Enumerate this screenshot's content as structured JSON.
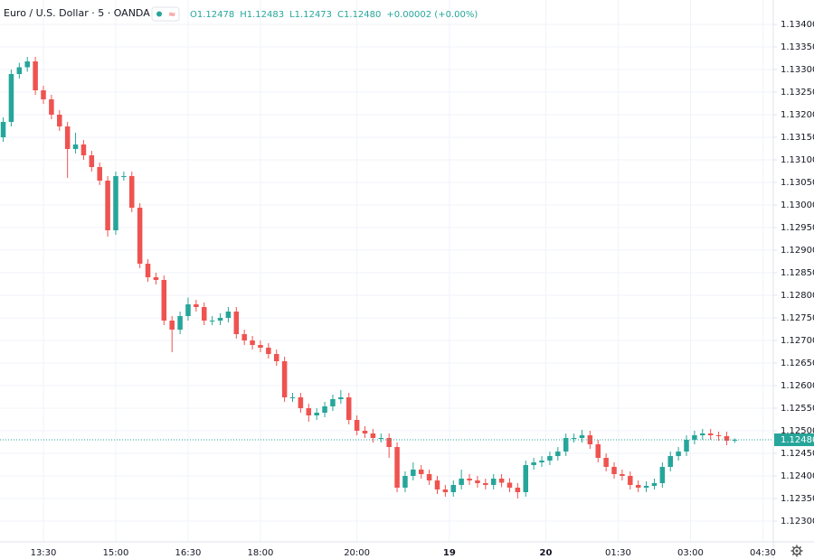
{
  "chart_data": {
    "type": "candlestick",
    "title": "Euro / U.S. Dollar · 5 · OANDA",
    "ohlc_text": [
      "O1.12478",
      "H1.12483",
      "L1.12473",
      "C1.12480",
      "+0.00002 (+0.00%)"
    ],
    "up_color": "#26a69a",
    "down_color": "#ef5350",
    "grid": true,
    "last_price": {
      "value": 1.1248,
      "label": "1.12480"
    },
    "xlim": [
      -0.4,
      95.8
    ],
    "xticks": [
      {
        "value": 5,
        "label": "13:30"
      },
      {
        "value": 14,
        "label": "15:00"
      },
      {
        "value": 23,
        "label": "16:30"
      },
      {
        "value": 32,
        "label": "18:00"
      },
      {
        "value": 44,
        "label": "20:00"
      },
      {
        "value": 55.5,
        "label": "19"
      },
      {
        "value": 67.5,
        "label": "20"
      },
      {
        "value": 76.5,
        "label": "01:30"
      },
      {
        "value": 85.5,
        "label": "03:00"
      },
      {
        "value": 94.5,
        "label": "04:30"
      }
    ],
    "ylim": [
      1.12254,
      1.13454
    ],
    "yticks": [
      {
        "value": 1.123,
        "label": "1.12300"
      },
      {
        "value": 1.1235,
        "label": "1.12350"
      },
      {
        "value": 1.124,
        "label": "1.12400"
      },
      {
        "value": 1.1245,
        "label": "1.12450"
      },
      {
        "value": 1.125,
        "label": "1.12500"
      },
      {
        "value": 1.1255,
        "label": "1.12550"
      },
      {
        "value": 1.126,
        "label": "1.12600"
      },
      {
        "value": 1.1265,
        "label": "1.12650"
      },
      {
        "value": 1.127,
        "label": "1.12700"
      },
      {
        "value": 1.1275,
        "label": "1.12750"
      },
      {
        "value": 1.128,
        "label": "1.12800"
      },
      {
        "value": 1.1285,
        "label": "1.12850"
      },
      {
        "value": 1.129,
        "label": "1.12900"
      },
      {
        "value": 1.1295,
        "label": "1.12950"
      },
      {
        "value": 1.13,
        "label": "1.13000"
      },
      {
        "value": 1.1305,
        "label": "1.13050"
      },
      {
        "value": 1.131,
        "label": "1.13100"
      },
      {
        "value": 1.1315,
        "label": "1.13150"
      },
      {
        "value": 1.132,
        "label": "1.13200"
      },
      {
        "value": 1.1325,
        "label": "1.13250"
      },
      {
        "value": 1.133,
        "label": "1.13300"
      },
      {
        "value": 1.1335,
        "label": "1.13350"
      },
      {
        "value": 1.134,
        "label": "1.13400"
      }
    ],
    "open": [
      1.1315,
      1.13184,
      1.1329,
      1.13305,
      1.13318,
      1.13254,
      1.13234,
      1.132,
      1.13174,
      1.13124,
      1.13134,
      1.1311,
      1.13084,
      1.13054,
      1.12944,
      1.13064,
      1.13064,
      1.12994,
      1.1287,
      1.1284,
      1.12834,
      1.12744,
      1.12724,
      1.12754,
      1.1278,
      1.12774,
      1.12744,
      1.12744,
      1.1275,
      1.12764,
      1.12714,
      1.127,
      1.1269,
      1.12684,
      1.1267,
      1.12654,
      1.12574,
      1.12574,
      1.1255,
      1.12534,
      1.1254,
      1.12554,
      1.1257,
      1.12574,
      1.12524,
      1.125,
      1.12494,
      1.12484,
      1.12484,
      1.12464,
      1.12374,
      1.124,
      1.12414,
      1.12404,
      1.1239,
      1.1237,
      1.12364,
      1.1238,
      1.12394,
      1.1239,
      1.12384,
      1.1238,
      1.12394,
      1.12385,
      1.12374,
      1.12364,
      1.12424,
      1.1243,
      1.12434,
      1.12444,
      1.12454,
      1.12484,
      1.12484,
      1.1249,
      1.1247,
      1.1244,
      1.1242,
      1.12404,
      1.124,
      1.1238,
      1.12374,
      1.12378,
      1.12384,
      1.1242,
      1.12444,
      1.12454,
      1.1248,
      1.1249,
      1.12494,
      1.1249,
      1.12488,
      1.12478
    ],
    "high": [
      1.13194,
      1.133,
      1.13315,
      1.13328,
      1.13328,
      1.13264,
      1.13244,
      1.1321,
      1.13184,
      1.1316,
      1.13144,
      1.1312,
      1.13094,
      1.13064,
      1.13074,
      1.13074,
      1.13074,
      1.13004,
      1.1288,
      1.1285,
      1.12844,
      1.12754,
      1.12764,
      1.12795,
      1.1279,
      1.12784,
      1.12754,
      1.1276,
      1.12774,
      1.12774,
      1.12724,
      1.1271,
      1.127,
      1.12694,
      1.1268,
      1.12664,
      1.12584,
      1.12584,
      1.1256,
      1.1255,
      1.12564,
      1.1258,
      1.1259,
      1.12584,
      1.12534,
      1.1251,
      1.12504,
      1.12494,
      1.12494,
      1.12474,
      1.1241,
      1.1243,
      1.12424,
      1.12414,
      1.124,
      1.1238,
      1.1239,
      1.12414,
      1.12404,
      1.124,
      1.12394,
      1.12404,
      1.12404,
      1.12395,
      1.12384,
      1.12434,
      1.1244,
      1.12444,
      1.12454,
      1.12464,
      1.12494,
      1.12494,
      1.12502,
      1.125,
      1.1248,
      1.1245,
      1.1243,
      1.12414,
      1.1241,
      1.1239,
      1.12388,
      1.12394,
      1.1243,
      1.12454,
      1.12464,
      1.1249,
      1.125,
      1.12504,
      1.12504,
      1.12498,
      1.12498,
      1.12483
    ],
    "low": [
      1.1314,
      1.13174,
      1.1328,
      1.13295,
      1.13244,
      1.13224,
      1.1319,
      1.13164,
      1.1306,
      1.13114,
      1.131,
      1.13074,
      1.13044,
      1.1293,
      1.12934,
      1.13054,
      1.12984,
      1.1286,
      1.1283,
      1.12824,
      1.12734,
      1.12674,
      1.12714,
      1.12744,
      1.12764,
      1.12734,
      1.12734,
      1.12734,
      1.1274,
      1.12704,
      1.1269,
      1.1268,
      1.12674,
      1.1266,
      1.12644,
      1.12564,
      1.12564,
      1.1254,
      1.1252,
      1.12524,
      1.1253,
      1.12544,
      1.1256,
      1.12514,
      1.1249,
      1.12484,
      1.12474,
      1.12474,
      1.1244,
      1.12364,
      1.12364,
      1.1239,
      1.12394,
      1.1238,
      1.1236,
      1.12354,
      1.12354,
      1.1237,
      1.1238,
      1.12374,
      1.1237,
      1.1237,
      1.12375,
      1.12364,
      1.1235,
      1.12354,
      1.12414,
      1.1242,
      1.12424,
      1.12434,
      1.12444,
      1.12474,
      1.12474,
      1.1246,
      1.1243,
      1.1241,
      1.12394,
      1.1239,
      1.1237,
      1.12364,
      1.12364,
      1.1237,
      1.12374,
      1.1241,
      1.12434,
      1.12444,
      1.1247,
      1.1248,
      1.1248,
      1.12478,
      1.12468,
      1.12473
    ],
    "close": [
      1.13184,
      1.1329,
      1.13305,
      1.13318,
      1.13254,
      1.13234,
      1.132,
      1.13174,
      1.13124,
      1.13134,
      1.1311,
      1.13084,
      1.13054,
      1.12944,
      1.13064,
      1.13064,
      1.12994,
      1.1287,
      1.1284,
      1.12834,
      1.12744,
      1.12724,
      1.12754,
      1.1278,
      1.12774,
      1.12744,
      1.12744,
      1.1275,
      1.12764,
      1.12714,
      1.127,
      1.1269,
      1.12684,
      1.1267,
      1.12654,
      1.12574,
      1.12574,
      1.1255,
      1.12534,
      1.1254,
      1.12554,
      1.1257,
      1.12574,
      1.12524,
      1.125,
      1.12494,
      1.12484,
      1.12484,
      1.12464,
      1.12374,
      1.124,
      1.12414,
      1.12404,
      1.1239,
      1.1237,
      1.12364,
      1.1238,
      1.12394,
      1.1239,
      1.12384,
      1.1238,
      1.12394,
      1.12385,
      1.12374,
      1.12364,
      1.12424,
      1.1243,
      1.12434,
      1.12444,
      1.12454,
      1.12484,
      1.12484,
      1.1249,
      1.1247,
      1.1244,
      1.1242,
      1.12404,
      1.124,
      1.1238,
      1.12374,
      1.12378,
      1.12384,
      1.1242,
      1.12444,
      1.12454,
      1.1248,
      1.1249,
      1.12494,
      1.1249,
      1.12488,
      1.12478,
      1.1248
    ]
  }
}
